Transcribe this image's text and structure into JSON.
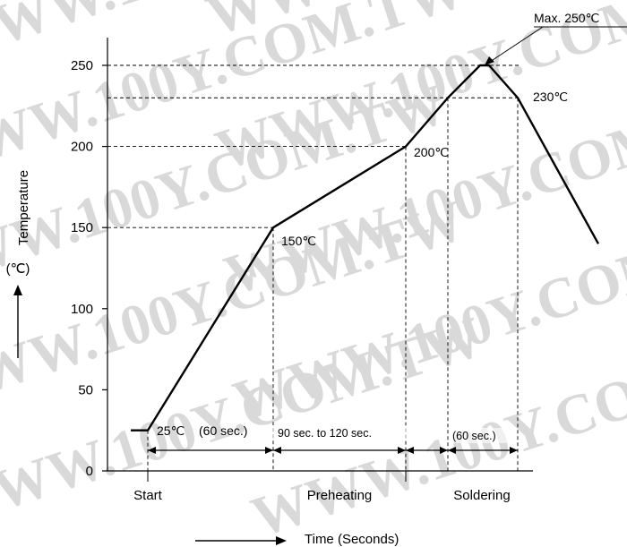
{
  "watermark": "WWW.100Y.COM.TW",
  "chart_data": {
    "type": "line",
    "title": "",
    "xlabel": "Time (Seconds)",
    "ylabel": "Temperature",
    "yunit": "(℃)",
    "ylim": [
      0,
      250
    ],
    "yticks": [
      "0",
      "50",
      "100",
      "150",
      "200",
      "250"
    ],
    "series": [
      {
        "x": [
          0,
          20,
          30,
          170,
          315,
          375,
          400,
          410,
          430,
          480
        ],
        "y": [
          25,
          25,
          25,
          150,
          200,
          230,
          250,
          250,
          230,
          140
        ]
      }
    ],
    "annotations": {
      "max": "Max. 250℃",
      "t230": "230℃",
      "t200": "200℃",
      "t150": "150℃",
      "t25": "25℃",
      "sec60a": "(60 sec.)",
      "sec90": "90 sec. to 120 sec.",
      "sec60b": "(60 sec.)"
    },
    "phases": [
      "Start",
      "Preheating",
      "Soldering"
    ]
  }
}
